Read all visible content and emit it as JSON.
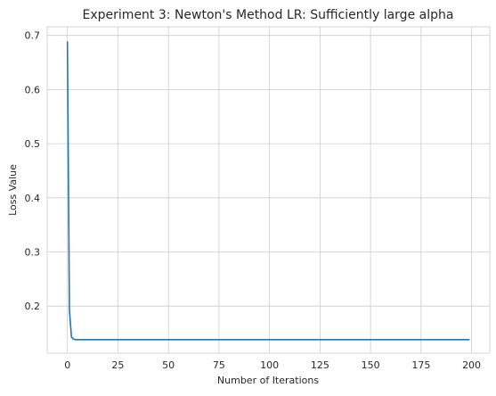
{
  "chart_data": {
    "type": "line",
    "title": "Experiment 3: Newton's Method LR: Sufficiently large alpha",
    "xlabel": "Number of Iterations",
    "ylabel": "Loss Value",
    "xlim": [
      -10,
      209
    ],
    "ylim": [
      0.113,
      0.716
    ],
    "xticks": [
      0,
      25,
      50,
      75,
      100,
      125,
      150,
      175,
      200
    ],
    "yticks": [
      0.2,
      0.3,
      0.4,
      0.5,
      0.6,
      0.7
    ],
    "grid": true,
    "series": [
      {
        "color": "#1f77b4",
        "x": [
          0,
          1,
          2,
          3,
          4,
          5,
          10,
          50,
          100,
          150,
          199
        ],
        "y": [
          0.689,
          0.193,
          0.143,
          0.139,
          0.138,
          0.138,
          0.138,
          0.138,
          0.138,
          0.138,
          0.138
        ]
      }
    ]
  }
}
